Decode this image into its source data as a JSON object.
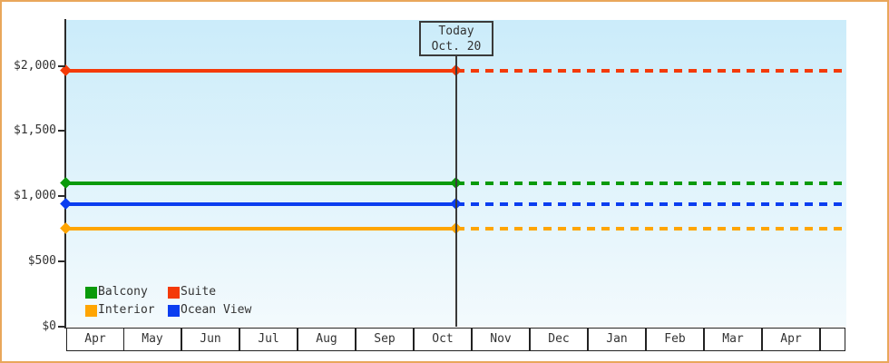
{
  "window": {
    "background": "#ffffff",
    "frame_border_color": "#e9a75b",
    "text_color": "#333333",
    "axis_color": "#2b2b2b",
    "plot_gradient_top": "#cbecfa",
    "plot_gradient_bottom": "#f3fafd"
  },
  "today_callout": {
    "line1": "Today",
    "line2": "Oct. 20"
  },
  "legend": {
    "items": [
      {
        "label": "Balcony",
        "color": "#0a9a0a"
      },
      {
        "label": "Suite",
        "color": "#f43a08"
      },
      {
        "label": "Interior",
        "color": "#ffa502"
      },
      {
        "label": "Ocean View",
        "color": "#0b3df0"
      }
    ]
  },
  "chart_data": {
    "type": "line",
    "title": "",
    "xlabel": "",
    "ylabel": "",
    "categories": [
      "Apr",
      "May",
      "Jun",
      "Jul",
      "Aug",
      "Sep",
      "Oct",
      "Nov",
      "Dec",
      "Jan",
      "Feb",
      "Mar",
      "Apr",
      ""
    ],
    "series": [
      {
        "name": "Suite",
        "color": "#f43a08",
        "value": 1960,
        "style_before_today": "solid",
        "style_after_today": "dashed"
      },
      {
        "name": "Balcony",
        "color": "#0a9a0a",
        "value": 1100,
        "style_before_today": "solid",
        "style_after_today": "dashed"
      },
      {
        "name": "Ocean View",
        "color": "#0b3df0",
        "value": 940,
        "style_before_today": "solid",
        "style_after_today": "dashed"
      },
      {
        "name": "Interior",
        "color": "#ffa502",
        "value": 750,
        "style_before_today": "solid",
        "style_after_today": "dashed"
      }
    ],
    "yticks": [
      {
        "label": "$0",
        "value": 0
      },
      {
        "label": "$500",
        "value": 500
      },
      {
        "label": "$1,000",
        "value": 1000
      },
      {
        "label": "$1,500",
        "value": 1500
      },
      {
        "label": "$2,000",
        "value": 2000
      }
    ],
    "ylim": [
      0,
      2350
    ],
    "grid": false,
    "legend_position": "bottom-left-inside",
    "today_marker": {
      "month": "Oct",
      "day": 20
    },
    "marker_shape": "diamond",
    "note": "Constant price lines; solid up to today, dashed projection after today"
  }
}
